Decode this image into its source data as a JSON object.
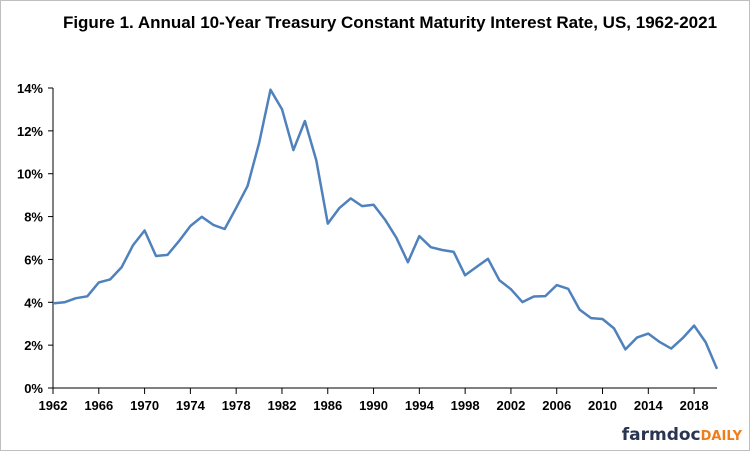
{
  "chart_data": {
    "type": "line",
    "title": "Figure 1. Annual 10-Year Treasury Constant Maturity Interest Rate, US, 1962-2021",
    "xlabel": "",
    "ylabel": "",
    "ylim": [
      0,
      14
    ],
    "xlim": [
      1962,
      2020
    ],
    "y_ticks": [
      "0%",
      "2%",
      "4%",
      "6%",
      "8%",
      "10%",
      "12%",
      "14%"
    ],
    "x_ticks": [
      "1962",
      "1966",
      "1970",
      "1974",
      "1978",
      "1982",
      "1986",
      "1990",
      "1994",
      "1998",
      "2002",
      "2006",
      "2010",
      "2014",
      "2018"
    ],
    "grid": false,
    "line_color": "#4f81bd",
    "x": [
      1962,
      1963,
      1964,
      1965,
      1966,
      1967,
      1968,
      1969,
      1970,
      1971,
      1972,
      1973,
      1974,
      1975,
      1976,
      1977,
      1978,
      1979,
      1980,
      1981,
      1982,
      1983,
      1984,
      1985,
      1986,
      1987,
      1988,
      1989,
      1990,
      1991,
      1992,
      1993,
      1994,
      1995,
      1996,
      1997,
      1998,
      1999,
      2000,
      2001,
      2002,
      2003,
      2004,
      2005,
      2006,
      2007,
      2008,
      2009,
      2010,
      2011,
      2012,
      2013,
      2014,
      2015,
      2016,
      2017,
      2018,
      2019,
      2020
    ],
    "values": [
      3.95,
      4.0,
      4.19,
      4.28,
      4.93,
      5.07,
      5.64,
      6.67,
      7.35,
      6.16,
      6.21,
      6.85,
      7.56,
      7.99,
      7.61,
      7.42,
      8.41,
      9.43,
      11.43,
      13.92,
      13.01,
      11.1,
      12.46,
      10.62,
      7.67,
      8.39,
      8.85,
      8.49,
      8.55,
      7.86,
      7.01,
      5.87,
      7.09,
      6.57,
      6.44,
      6.35,
      5.26,
      5.65,
      6.03,
      5.02,
      4.61,
      4.01,
      4.27,
      4.29,
      4.8,
      4.63,
      3.66,
      3.26,
      3.22,
      2.78,
      1.8,
      2.35,
      2.54,
      2.14,
      1.84,
      2.33,
      2.91,
      2.14,
      0.89
    ]
  },
  "logo": {
    "part1": "farmdoc",
    "part2": "DAILY"
  }
}
